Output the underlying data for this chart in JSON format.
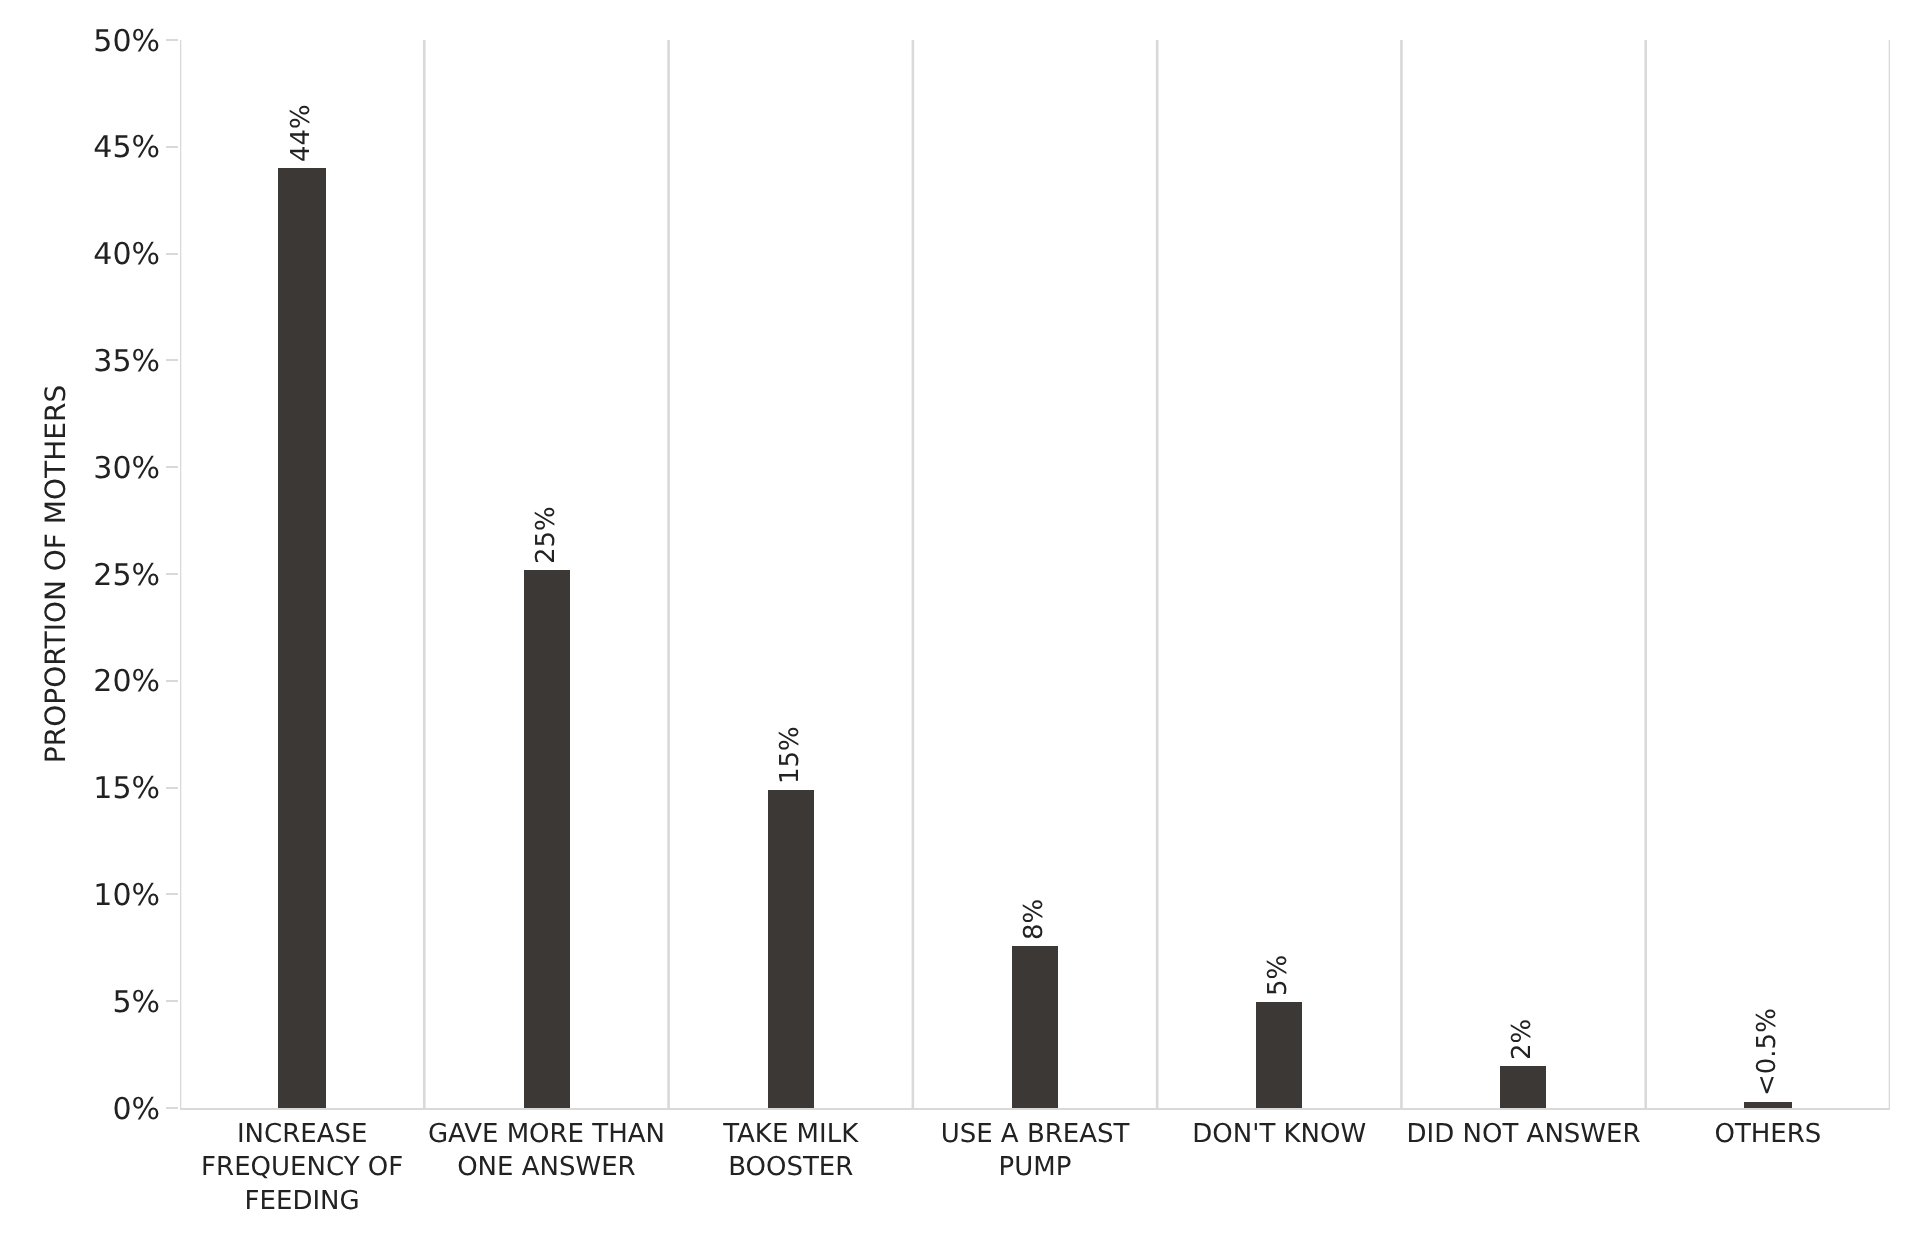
{
  "chart_data": {
    "type": "bar",
    "ylabel": "PROPORTION OF MOTHERS",
    "categories": [
      "INCREASE FREQUENCY OF FEEDING",
      "GAVE MORE THAN ONE ANSWER",
      "TAKE MILK BOOSTER",
      "USE A BREAST PUMP",
      "DON'T KNOW",
      "DID NOT ANSWER",
      "OTHERS"
    ],
    "values": [
      44.0,
      25.2,
      14.9,
      7.6,
      5.0,
      2.0,
      0.3
    ],
    "value_labels": [
      "44%",
      "25%",
      "15%",
      "8%",
      "5%",
      "2%",
      "<0.5%"
    ],
    "color": "#3b3835",
    "ylim": [
      0,
      50
    ],
    "yticks": [
      {
        "value": 0,
        "label": "0%"
      },
      {
        "value": 5,
        "label": "5%"
      },
      {
        "value": 10,
        "label": "10%"
      },
      {
        "value": 15,
        "label": "15%"
      },
      {
        "value": 20,
        "label": "20%"
      },
      {
        "value": 25,
        "label": "25%"
      },
      {
        "value": 30,
        "label": "30%"
      },
      {
        "value": 35,
        "label": "35%"
      },
      {
        "value": 40,
        "label": "40%"
      },
      {
        "value": 45,
        "label": "45%"
      },
      {
        "value": 50,
        "label": "50%"
      }
    ],
    "grid": "x"
  }
}
